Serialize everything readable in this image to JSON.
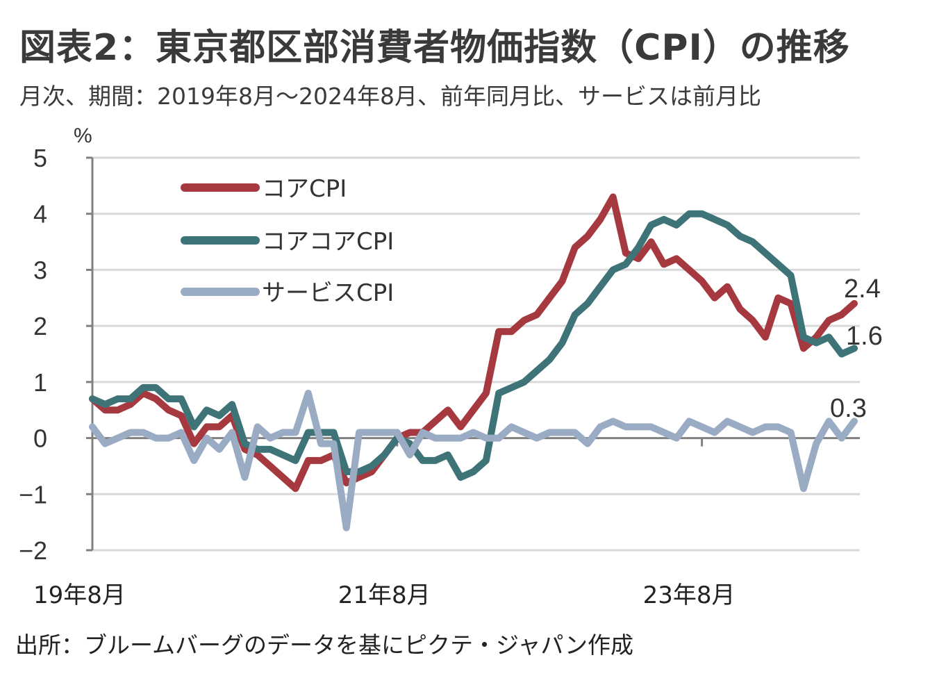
{
  "header": {
    "title": "図表2：東京都区部消費者物価指数（CPI）の推移",
    "subtitle": "月次、期間：2019年8月～2024年8月、前年同月比、サービスは前月比"
  },
  "footer": {
    "source": "出所：ブルームバーグのデータを基にピクテ・ジャパン作成"
  },
  "chart_data": {
    "type": "line",
    "title": "東京都区部消費者物価指数（CPI）の推移",
    "ylabel": "%",
    "xlabel": "",
    "ylim": [
      -2,
      5
    ],
    "yticks": [
      5,
      4,
      3,
      2,
      1,
      0,
      -1,
      -2
    ],
    "ytick_labels": [
      "5",
      "4",
      "3",
      "2",
      "1",
      "0",
      "−1",
      "−2"
    ],
    "x_start": "2019-08",
    "x_end": "2024-08",
    "n_points": 61,
    "xticks": [
      {
        "index": 0,
        "label": "19年8月"
      },
      {
        "index": 24,
        "label": "21年8月"
      },
      {
        "index": 48,
        "label": "23年8月"
      }
    ],
    "grid": true,
    "legend_position": "top-left",
    "series": [
      {
        "name": "コアCPI",
        "color": "#a5393f",
        "end_label": "2.4",
        "values": [
          0.7,
          0.5,
          0.5,
          0.6,
          0.8,
          0.7,
          0.5,
          0.4,
          -0.1,
          0.2,
          0.2,
          0.4,
          -0.2,
          -0.3,
          -0.5,
          -0.7,
          -0.9,
          -0.4,
          -0.4,
          -0.3,
          -0.8,
          -0.7,
          -0.6,
          -0.3,
          0.0,
          0.1,
          0.1,
          0.3,
          0.5,
          0.2,
          0.5,
          0.8,
          1.9,
          1.9,
          2.1,
          2.2,
          2.5,
          2.8,
          3.4,
          3.6,
          3.9,
          4.3,
          3.3,
          3.2,
          3.5,
          3.1,
          3.2,
          3.0,
          2.8,
          2.5,
          2.7,
          2.3,
          2.1,
          1.8,
          2.5,
          2.4,
          1.6,
          1.8,
          2.1,
          2.2,
          2.4
        ]
      },
      {
        "name": "コアコアCPI",
        "color": "#3e7378",
        "end_label": "1.6",
        "values": [
          0.7,
          0.6,
          0.7,
          0.7,
          0.9,
          0.9,
          0.7,
          0.7,
          0.2,
          0.5,
          0.4,
          0.6,
          -0.1,
          -0.2,
          -0.2,
          -0.3,
          -0.4,
          0.1,
          0.1,
          0.1,
          -0.6,
          -0.6,
          -0.5,
          -0.3,
          0.0,
          -0.1,
          -0.4,
          -0.4,
          -0.3,
          -0.7,
          -0.6,
          -0.4,
          0.8,
          0.9,
          1.0,
          1.2,
          1.4,
          1.7,
          2.2,
          2.4,
          2.7,
          3.0,
          3.1,
          3.4,
          3.8,
          3.9,
          3.8,
          4.0,
          4.0,
          3.9,
          3.8,
          3.6,
          3.5,
          3.3,
          3.1,
          2.9,
          1.8,
          1.7,
          1.8,
          1.5,
          1.6
        ]
      },
      {
        "name": "サービスCPI",
        "color": "#9aacc4",
        "end_label": "0.3",
        "values": [
          0.2,
          -0.1,
          0.0,
          0.1,
          0.1,
          0.0,
          0.0,
          0.1,
          -0.4,
          0.0,
          -0.2,
          0.1,
          -0.7,
          0.2,
          0.0,
          0.1,
          0.1,
          0.8,
          -0.1,
          -0.1,
          -1.6,
          0.1,
          0.1,
          0.1,
          0.1,
          -0.3,
          0.1,
          0.0,
          0.0,
          0.0,
          0.1,
          0.0,
          0.0,
          0.2,
          0.1,
          0.0,
          0.1,
          0.1,
          0.1,
          -0.1,
          0.2,
          0.3,
          0.2,
          0.2,
          0.2,
          0.1,
          0.0,
          0.3,
          0.2,
          0.1,
          0.3,
          0.2,
          0.1,
          0.2,
          0.2,
          0.1,
          -0.9,
          -0.1,
          0.3,
          0.0,
          0.3
        ]
      }
    ]
  },
  "colors": {
    "text": "#3a3a3a",
    "grid": "#d9d9d9",
    "axis": "#808080"
  }
}
